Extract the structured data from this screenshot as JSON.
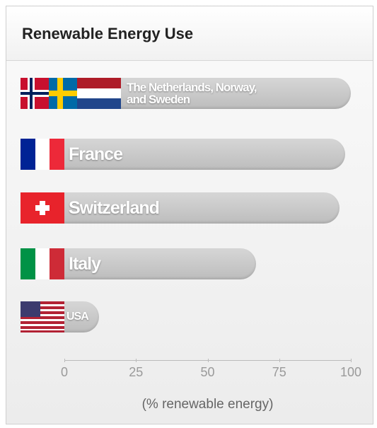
{
  "chart_data": {
    "type": "bar",
    "orientation": "horizontal",
    "title": "Renewable Energy Use",
    "categories": [
      "The Netherlands, Norway, and Sweden",
      "France",
      "Switzerland",
      "Italy",
      "USA"
    ],
    "values": [
      100,
      98,
      96,
      67,
      12
    ],
    "color": "#c4c4c4",
    "xlim": [
      0,
      100
    ],
    "xticks": [
      0,
      25,
      50,
      75,
      100
    ],
    "x_label": "(% renewable energy)"
  }
}
